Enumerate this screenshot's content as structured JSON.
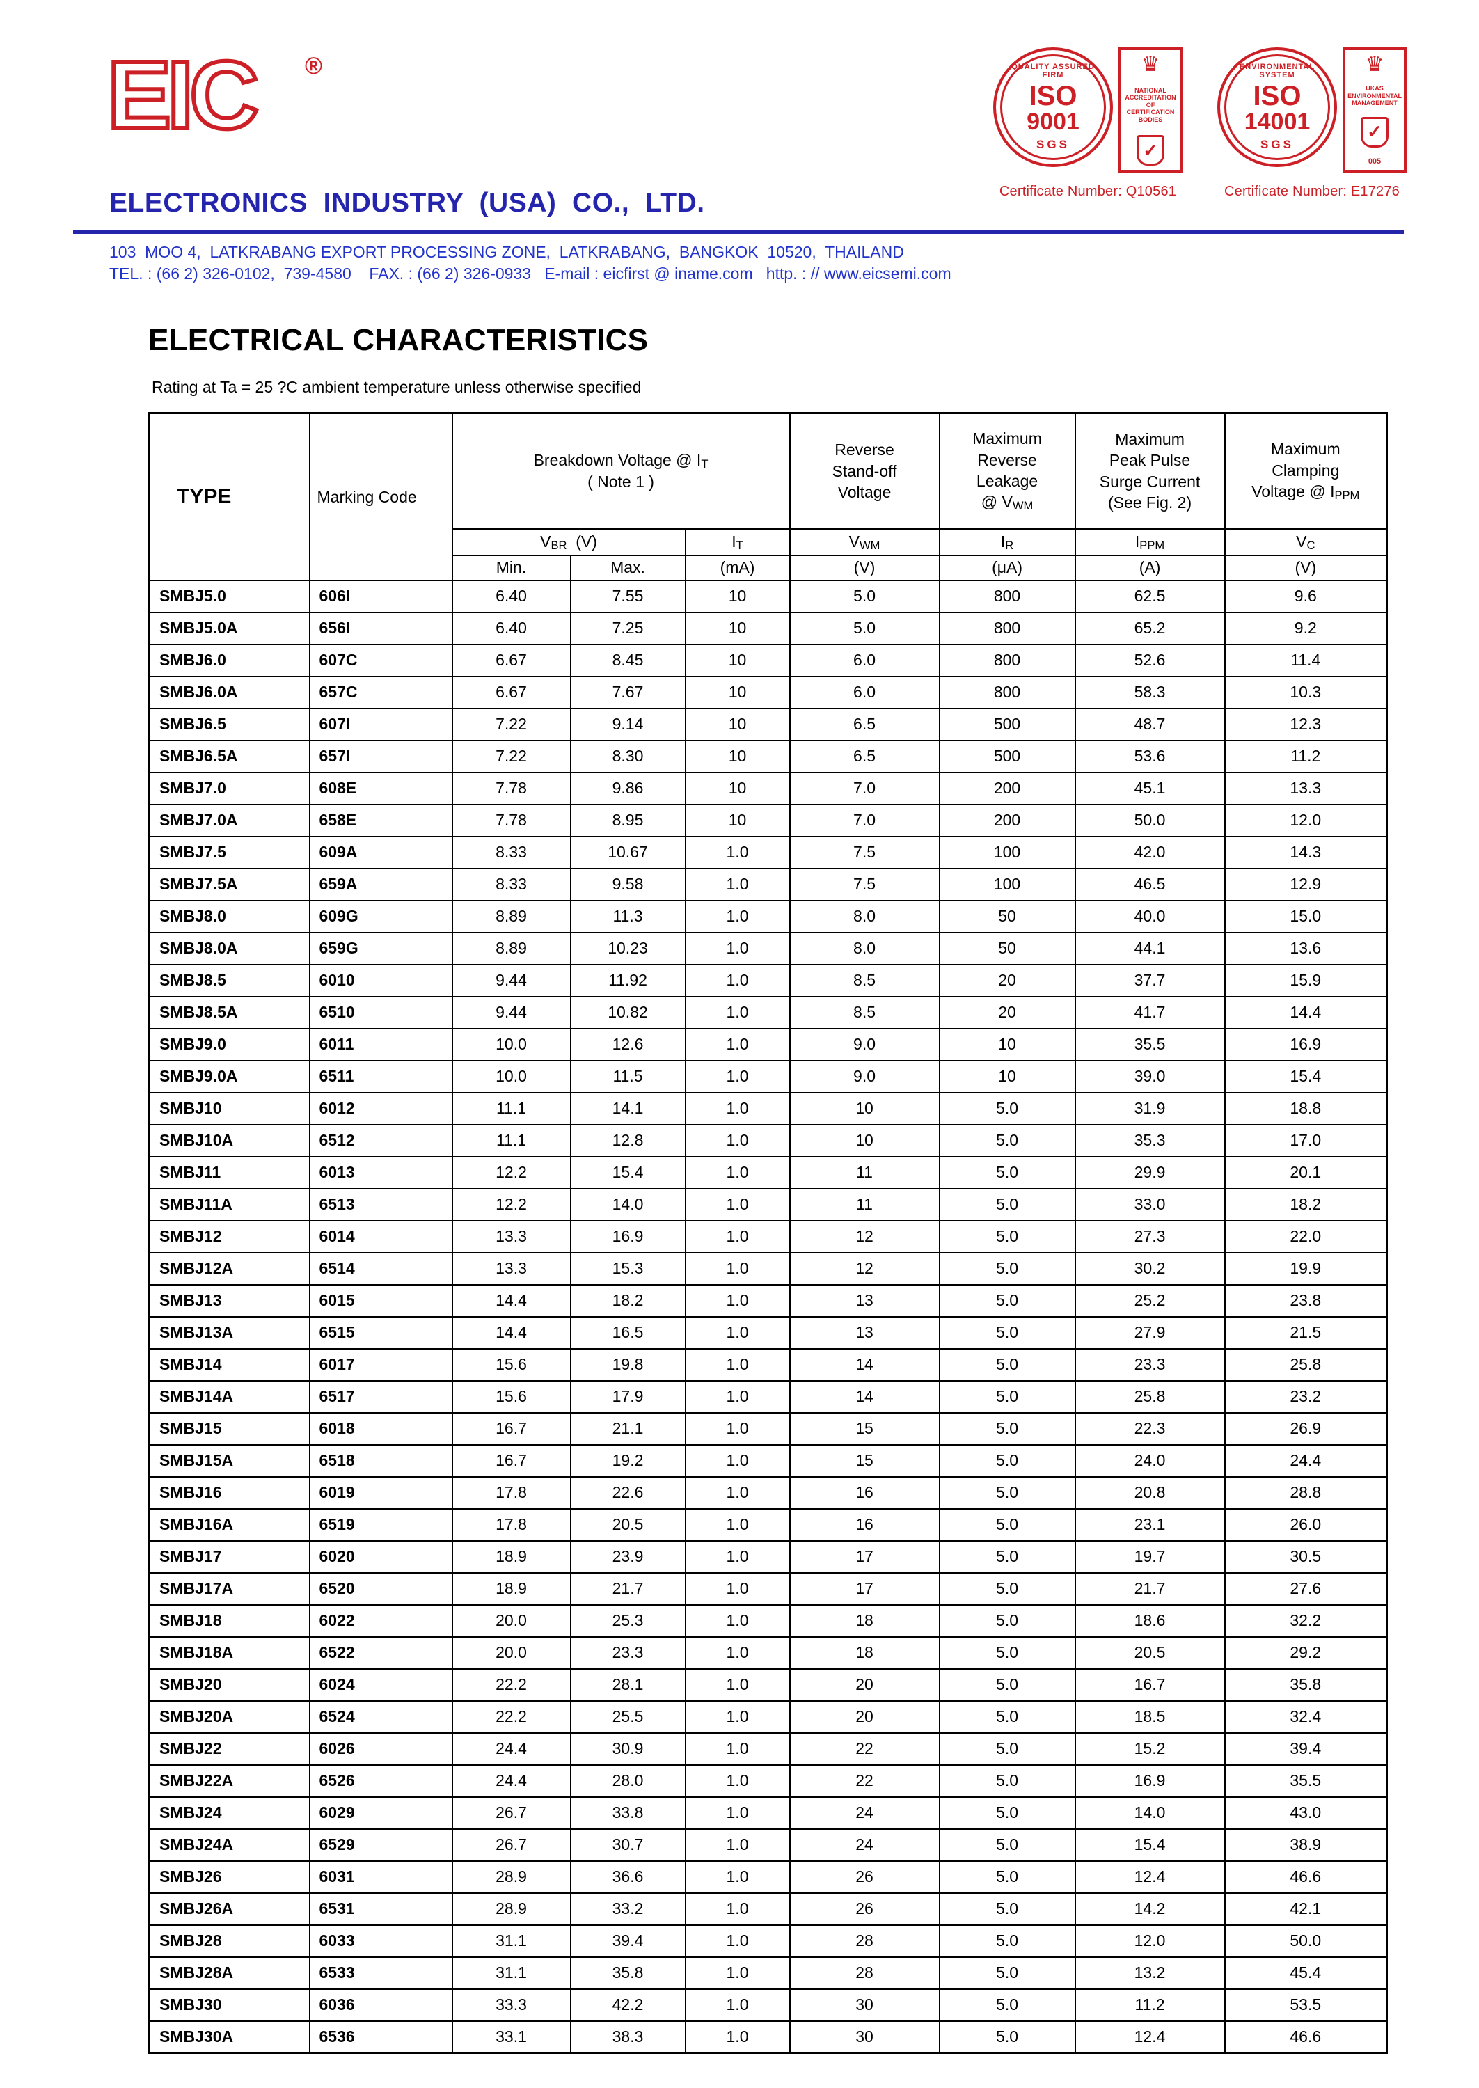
{
  "colors": {
    "brand_blue": "#2424ac",
    "address_blue": "#2233cc",
    "logo_red": "#cc2026",
    "text_black": "#000000"
  },
  "header": {
    "logo_text": "EIC",
    "registered": "®",
    "company_name": "ELECTRONICS  INDUSTRY  (USA)  CO.,  LTD.",
    "address_line1": "103  MOO 4,  LATKRABANG EXPORT PROCESSING ZONE,  LATKRABANG,  BANGKOK  10520,  THAILAND",
    "address_line2": "TEL. : (66 2) 326-0102,  739-4580    FAX. : (66 2) 326-0933   E-mail : eicfirst @ iname.com   http. : // www.eicsemi.com",
    "seal_iso9001": {
      "arc_text": "QUALITY ASSURED FIRM",
      "iso": "ISO",
      "number": "9001",
      "sgs": "SGS",
      "crown": "♛",
      "accred_text": "NATIONAL ACCREDITATION OF CERTIFICATION BODIES",
      "check": "✓",
      "certificate": "Certificate Number: Q10561"
    },
    "seal_iso14001": {
      "arc_text": "ENVIRONMENTAL SYSTEM",
      "iso": "ISO",
      "number": "14001",
      "sgs": "SGS",
      "crown": "♛",
      "accred_text": "UKAS ENVIRONMENTAL MANAGEMENT",
      "accred_num": "005",
      "check": "✓",
      "certificate": "Certificate Number: E17276"
    }
  },
  "section": {
    "title": "ELECTRICAL CHARACTERISTICS",
    "subtitle": "Rating at Ta = 25 ?C ambient temperature unless otherwise specified"
  },
  "table": {
    "h1": {
      "type": "TYPE",
      "marking": "Marking Code",
      "breakdown_main": "Breakdown Voltage @  I",
      "breakdown_sub": "T",
      "breakdown_note": "( Note 1 )",
      "standoff": "Reverse\nStand-off\nVoltage",
      "leakage_main": "Maximum\nReverse\nLeakage\n@ V",
      "leakage_sub": "WM",
      "surge": "Maximum\nPeak Pulse\nSurge Current\n(See Fig. 2)",
      "clamping_main": "Maximum\nClamping\nVoltage @ I",
      "clamping_sub": "PPM"
    },
    "h2": {
      "vbr": {
        "m": "V",
        "s": "BR",
        "x": "  (V)"
      },
      "it": {
        "m": "I",
        "s": "T"
      },
      "vwm": {
        "m": "V",
        "s": "WM"
      },
      "ir": {
        "m": "I",
        "s": "R"
      },
      "ippm": {
        "m": "I",
        "s": "PPM"
      },
      "vc": {
        "m": "V",
        "s": "C"
      }
    },
    "h3": {
      "min": "Min.",
      "max": "Max.",
      "it_unit": "(mA)",
      "vwm_unit": "(V)",
      "ir_unit": "(μA)",
      "ippm_unit": "(A)",
      "vc_unit": "(V)"
    },
    "rows": [
      [
        "SMBJ5.0",
        "606I",
        "6.40",
        "7.55",
        "10",
        "5.0",
        "800",
        "62.5",
        "9.6"
      ],
      [
        "SMBJ5.0A",
        "656I",
        "6.40",
        "7.25",
        "10",
        "5.0",
        "800",
        "65.2",
        "9.2"
      ],
      [
        "SMBJ6.0",
        "607C",
        "6.67",
        "8.45",
        "10",
        "6.0",
        "800",
        "52.6",
        "11.4"
      ],
      [
        "SMBJ6.0A",
        "657C",
        "6.67",
        "7.67",
        "10",
        "6.0",
        "800",
        "58.3",
        "10.3"
      ],
      [
        "SMBJ6.5",
        "607I",
        "7.22",
        "9.14",
        "10",
        "6.5",
        "500",
        "48.7",
        "12.3"
      ],
      [
        "SMBJ6.5A",
        "657I",
        "7.22",
        "8.30",
        "10",
        "6.5",
        "500",
        "53.6",
        "11.2"
      ],
      [
        "SMBJ7.0",
        "608E",
        "7.78",
        "9.86",
        "10",
        "7.0",
        "200",
        "45.1",
        "13.3"
      ],
      [
        "SMBJ7.0A",
        "658E",
        "7.78",
        "8.95",
        "10",
        "7.0",
        "200",
        "50.0",
        "12.0"
      ],
      [
        "SMBJ7.5",
        "609A",
        "8.33",
        "10.67",
        "1.0",
        "7.5",
        "100",
        "42.0",
        "14.3"
      ],
      [
        "SMBJ7.5A",
        "659A",
        "8.33",
        "9.58",
        "1.0",
        "7.5",
        "100",
        "46.5",
        "12.9"
      ],
      [
        "SMBJ8.0",
        "609G",
        "8.89",
        "11.3",
        "1.0",
        "8.0",
        "50",
        "40.0",
        "15.0"
      ],
      [
        "SMBJ8.0A",
        "659G",
        "8.89",
        "10.23",
        "1.0",
        "8.0",
        "50",
        "44.1",
        "13.6"
      ],
      [
        "SMBJ8.5",
        "6010",
        "9.44",
        "11.92",
        "1.0",
        "8.5",
        "20",
        "37.7",
        "15.9"
      ],
      [
        "SMBJ8.5A",
        "6510",
        "9.44",
        "10.82",
        "1.0",
        "8.5",
        "20",
        "41.7",
        "14.4"
      ],
      [
        "SMBJ9.0",
        "6011",
        "10.0",
        "12.6",
        "1.0",
        "9.0",
        "10",
        "35.5",
        "16.9"
      ],
      [
        "SMBJ9.0A",
        "6511",
        "10.0",
        "11.5",
        "1.0",
        "9.0",
        "10",
        "39.0",
        "15.4"
      ],
      [
        "SMBJ10",
        "6012",
        "11.1",
        "14.1",
        "1.0",
        "10",
        "5.0",
        "31.9",
        "18.8"
      ],
      [
        "SMBJ10A",
        "6512",
        "11.1",
        "12.8",
        "1.0",
        "10",
        "5.0",
        "35.3",
        "17.0"
      ],
      [
        "SMBJ11",
        "6013",
        "12.2",
        "15.4",
        "1.0",
        "11",
        "5.0",
        "29.9",
        "20.1"
      ],
      [
        "SMBJ11A",
        "6513",
        "12.2",
        "14.0",
        "1.0",
        "11",
        "5.0",
        "33.0",
        "18.2"
      ],
      [
        "SMBJ12",
        "6014",
        "13.3",
        "16.9",
        "1.0",
        "12",
        "5.0",
        "27.3",
        "22.0"
      ],
      [
        "SMBJ12A",
        "6514",
        "13.3",
        "15.3",
        "1.0",
        "12",
        "5.0",
        "30.2",
        "19.9"
      ],
      [
        "SMBJ13",
        "6015",
        "14.4",
        "18.2",
        "1.0",
        "13",
        "5.0",
        "25.2",
        "23.8"
      ],
      [
        "SMBJ13A",
        "6515",
        "14.4",
        "16.5",
        "1.0",
        "13",
        "5.0",
        "27.9",
        "21.5"
      ],
      [
        "SMBJ14",
        "6017",
        "15.6",
        "19.8",
        "1.0",
        "14",
        "5.0",
        "23.3",
        "25.8"
      ],
      [
        "SMBJ14A",
        "6517",
        "15.6",
        "17.9",
        "1.0",
        "14",
        "5.0",
        "25.8",
        "23.2"
      ],
      [
        "SMBJ15",
        "6018",
        "16.7",
        "21.1",
        "1.0",
        "15",
        "5.0",
        "22.3",
        "26.9"
      ],
      [
        "SMBJ15A",
        "6518",
        "16.7",
        "19.2",
        "1.0",
        "15",
        "5.0",
        "24.0",
        "24.4"
      ],
      [
        "SMBJ16",
        "6019",
        "17.8",
        "22.6",
        "1.0",
        "16",
        "5.0",
        "20.8",
        "28.8"
      ],
      [
        "SMBJ16A",
        "6519",
        "17.8",
        "20.5",
        "1.0",
        "16",
        "5.0",
        "23.1",
        "26.0"
      ],
      [
        "SMBJ17",
        "6020",
        "18.9",
        "23.9",
        "1.0",
        "17",
        "5.0",
        "19.7",
        "30.5"
      ],
      [
        "SMBJ17A",
        "6520",
        "18.9",
        "21.7",
        "1.0",
        "17",
        "5.0",
        "21.7",
        "27.6"
      ],
      [
        "SMBJ18",
        "6022",
        "20.0",
        "25.3",
        "1.0",
        "18",
        "5.0",
        "18.6",
        "32.2"
      ],
      [
        "SMBJ18A",
        "6522",
        "20.0",
        "23.3",
        "1.0",
        "18",
        "5.0",
        "20.5",
        "29.2"
      ],
      [
        "SMBJ20",
        "6024",
        "22.2",
        "28.1",
        "1.0",
        "20",
        "5.0",
        "16.7",
        "35.8"
      ],
      [
        "SMBJ20A",
        "6524",
        "22.2",
        "25.5",
        "1.0",
        "20",
        "5.0",
        "18.5",
        "32.4"
      ],
      [
        "SMBJ22",
        "6026",
        "24.4",
        "30.9",
        "1.0",
        "22",
        "5.0",
        "15.2",
        "39.4"
      ],
      [
        "SMBJ22A",
        "6526",
        "24.4",
        "28.0",
        "1.0",
        "22",
        "5.0",
        "16.9",
        "35.5"
      ],
      [
        "SMBJ24",
        "6029",
        "26.7",
        "33.8",
        "1.0",
        "24",
        "5.0",
        "14.0",
        "43.0"
      ],
      [
        "SMBJ24A",
        "6529",
        "26.7",
        "30.7",
        "1.0",
        "24",
        "5.0",
        "15.4",
        "38.9"
      ],
      [
        "SMBJ26",
        "6031",
        "28.9",
        "36.6",
        "1.0",
        "26",
        "5.0",
        "12.4",
        "46.6"
      ],
      [
        "SMBJ26A",
        "6531",
        "28.9",
        "33.2",
        "1.0",
        "26",
        "5.0",
        "14.2",
        "42.1"
      ],
      [
        "SMBJ28",
        "6033",
        "31.1",
        "39.4",
        "1.0",
        "28",
        "5.0",
        "12.0",
        "50.0"
      ],
      [
        "SMBJ28A",
        "6533",
        "31.1",
        "35.8",
        "1.0",
        "28",
        "5.0",
        "13.2",
        "45.4"
      ],
      [
        "SMBJ30",
        "6036",
        "33.3",
        "42.2",
        "1.0",
        "30",
        "5.0",
        "11.2",
        "53.5"
      ],
      [
        "SMBJ30A",
        "6536",
        "33.1",
        "38.3",
        "1.0",
        "30",
        "5.0",
        "12.4",
        "46.6"
      ]
    ]
  }
}
